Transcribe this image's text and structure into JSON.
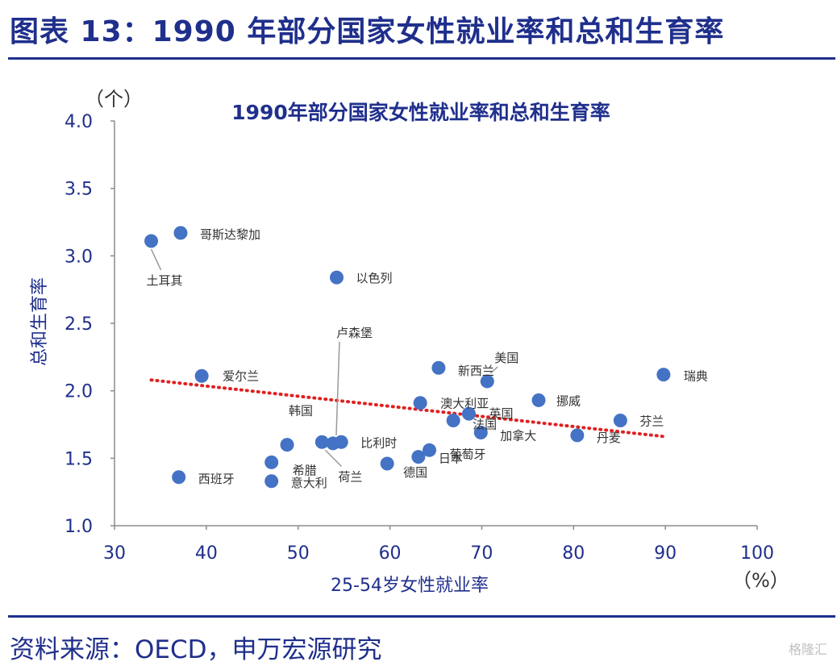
{
  "figure_title": "图表 13：1990 年部分国家女性就业率和总和生育率",
  "source": "资料来源：OECD，申万宏源研究",
  "watermark": "格隆汇",
  "colors": {
    "brand": "#1f2f8c",
    "marker": "#4472c4",
    "trend": "#e02020",
    "axis": "#8c8c8c"
  },
  "chart_data": {
    "type": "scatter",
    "title": "1990年部分国家女性就业率和总和生育率",
    "xlabel": "25-54岁女性就业率",
    "ylabel": "总和生育率",
    "x_unit": "（%）",
    "y_unit": "（个）",
    "xlim": [
      30,
      100
    ],
    "ylim": [
      1.0,
      4.0
    ],
    "x_ticks": [
      "30",
      "40",
      "50",
      "60",
      "70",
      "80",
      "90",
      "100"
    ],
    "y_ticks": [
      "1.0",
      "1.5",
      "2.0",
      "2.5",
      "3.0",
      "3.5",
      "4.0"
    ],
    "grid": false,
    "points": [
      {
        "label": "土耳其",
        "x": 34.0,
        "y": 3.11
      },
      {
        "label": "哥斯达黎加",
        "x": 37.2,
        "y": 3.17
      },
      {
        "label": "西班牙",
        "x": 37.0,
        "y": 1.36
      },
      {
        "label": "爱尔兰",
        "x": 39.5,
        "y": 2.11
      },
      {
        "label": "希腊",
        "x": 47.1,
        "y": 1.47
      },
      {
        "label": "意大利",
        "x": 47.1,
        "y": 1.33
      },
      {
        "label": "韩国",
        "x": 48.8,
        "y": 1.6
      },
      {
        "label": "荷兰",
        "x": 52.6,
        "y": 1.62
      },
      {
        "label": "卢森堡",
        "x": 53.8,
        "y": 1.61
      },
      {
        "label": "比利时",
        "x": 54.7,
        "y": 1.62
      },
      {
        "label": "以色列",
        "x": 54.2,
        "y": 2.84
      },
      {
        "label": "德国",
        "x": 59.7,
        "y": 1.46
      },
      {
        "label": "日本",
        "x": 63.1,
        "y": 1.51
      },
      {
        "label": "澳大利亚",
        "x": 63.3,
        "y": 1.91
      },
      {
        "label": "葡萄牙",
        "x": 64.3,
        "y": 1.56
      },
      {
        "label": "新西兰",
        "x": 65.3,
        "y": 2.17
      },
      {
        "label": "法国",
        "x": 66.9,
        "y": 1.78
      },
      {
        "label": "英国",
        "x": 68.6,
        "y": 1.83
      },
      {
        "label": "加拿大",
        "x": 69.9,
        "y": 1.69
      },
      {
        "label": "美国",
        "x": 70.6,
        "y": 2.07
      },
      {
        "label": "挪威",
        "x": 76.2,
        "y": 1.93
      },
      {
        "label": "丹麦",
        "x": 80.4,
        "y": 1.67
      },
      {
        "label": "芬兰",
        "x": 85.1,
        "y": 1.78
      },
      {
        "label": "瑞典",
        "x": 89.8,
        "y": 2.12
      }
    ],
    "trendline": {
      "style": "dotted",
      "x": [
        34,
        90
      ],
      "y": [
        2.08,
        1.66
      ]
    }
  }
}
